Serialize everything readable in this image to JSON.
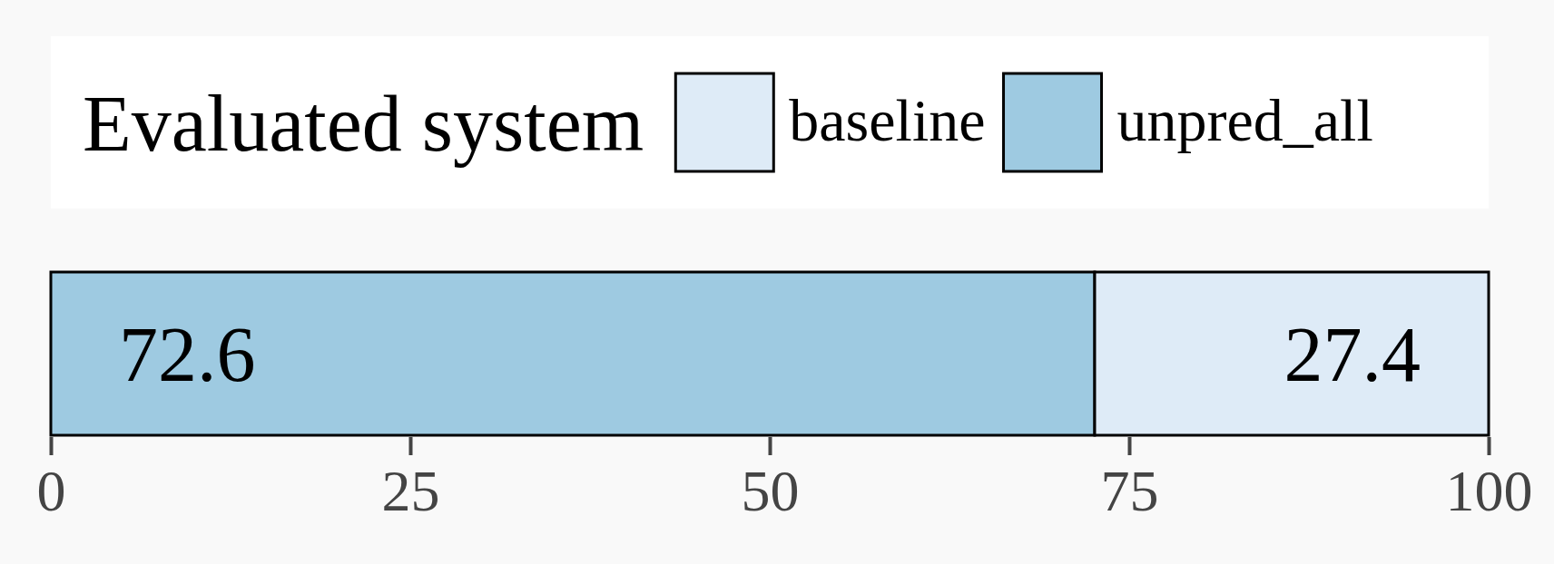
{
  "chart_data": {
    "type": "bar",
    "orientation": "horizontal",
    "stacked": true,
    "categories": [
      null
    ],
    "series": [
      {
        "name": "unpred_all",
        "color": "#9ecae1",
        "values": [
          72.6
        ]
      },
      {
        "name": "baseline",
        "color": "#deebf7",
        "values": [
          27.4
        ]
      }
    ],
    "xlim": [
      0,
      100
    ],
    "xticks": [
      0,
      25,
      50,
      75,
      100
    ],
    "legend_title": "Evaluated system",
    "legend": "top",
    "data_labels": true,
    "grid": false
  }
}
